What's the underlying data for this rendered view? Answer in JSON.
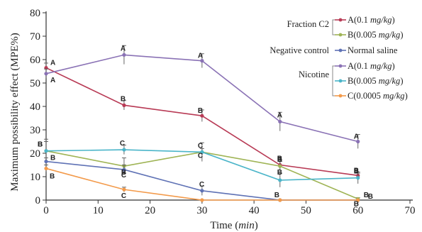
{
  "chart_data": {
    "type": "line",
    "xlabel_main": "Time (",
    "xlabel_unit": "min",
    "xlabel_close": ")",
    "ylabel": "Maximum possibility effect (MPE%)",
    "xlim": [
      0,
      70
    ],
    "ylim": [
      0,
      80
    ],
    "x_ticks": [
      0,
      10,
      20,
      30,
      40,
      50,
      60,
      70
    ],
    "y_ticks": [
      0,
      10,
      20,
      30,
      40,
      50,
      60,
      70,
      80
    ],
    "x": [
      0,
      15,
      30,
      45,
      60
    ],
    "legend_groups": [
      {
        "label": "Fraction C2",
        "series_indices": [
          0,
          1
        ]
      },
      {
        "label": "Negative control",
        "series_indices": [
          2
        ]
      },
      {
        "label": "Nicotine",
        "series_indices": [
          3,
          4,
          5
        ]
      }
    ],
    "series": [
      {
        "name_main": "A(0.1 ",
        "name_unit": "mg/kg",
        "name_close": ")",
        "color": "#b83a55",
        "values": [
          56.5,
          40.5,
          36,
          15,
          10.5
        ],
        "errors": [
          2,
          2,
          2.5,
          1.5,
          1
        ],
        "point_labels": [
          "A",
          "B",
          "B",
          "B",
          "B"
        ]
      },
      {
        "name_main": "B(0.005 ",
        "name_unit": "mg/kg",
        "name_close": ")",
        "color": "#9fb455",
        "values": [
          21,
          14.5,
          20.5,
          14.5,
          0.5
        ],
        "errors": [
          5,
          3.5,
          4,
          2,
          0.5
        ],
        "point_labels": [
          "B",
          "B",
          "C",
          "B",
          "B"
        ]
      },
      {
        "name_main": "Normal saline",
        "name_unit": "",
        "name_close": "",
        "color": "#5f72b5",
        "values": [
          16.5,
          13,
          4,
          0,
          0
        ],
        "errors": [
          1.5,
          2,
          2,
          0,
          0
        ],
        "point_labels": [
          "B",
          "C",
          "C",
          "B",
          "B"
        ]
      },
      {
        "name_main": "A(0.1 ",
        "name_unit": "mg/kg",
        "name_close": ")",
        "color": "#8a72b5",
        "values": [
          54,
          62,
          59.5,
          33.5,
          25
        ],
        "errors": [
          2,
          4,
          3,
          4,
          3
        ],
        "point_labels": [
          "A",
          "A",
          "A",
          "A",
          "A"
        ]
      },
      {
        "name_main": "B(0.005 ",
        "name_unit": "mg/kg",
        "name_close": ")",
        "color": "#4bb5c9",
        "values": [
          21,
          21.5,
          20.5,
          8.5,
          9.5
        ],
        "errors": [
          4,
          2,
          1.5,
          3,
          2.5
        ],
        "point_labels": [
          "B",
          "C",
          "C",
          "B",
          "B"
        ]
      },
      {
        "name_main": "C(0.0005 ",
        "name_unit": "mg/kg",
        "name_close": ")",
        "color": "#f39a4a",
        "values": [
          13.5,
          4.5,
          0,
          0,
          0
        ],
        "errors": [
          1.5,
          1,
          0,
          0,
          0
        ],
        "point_labels": [
          "B",
          "C",
          "",
          "",
          "B"
        ]
      }
    ]
  }
}
